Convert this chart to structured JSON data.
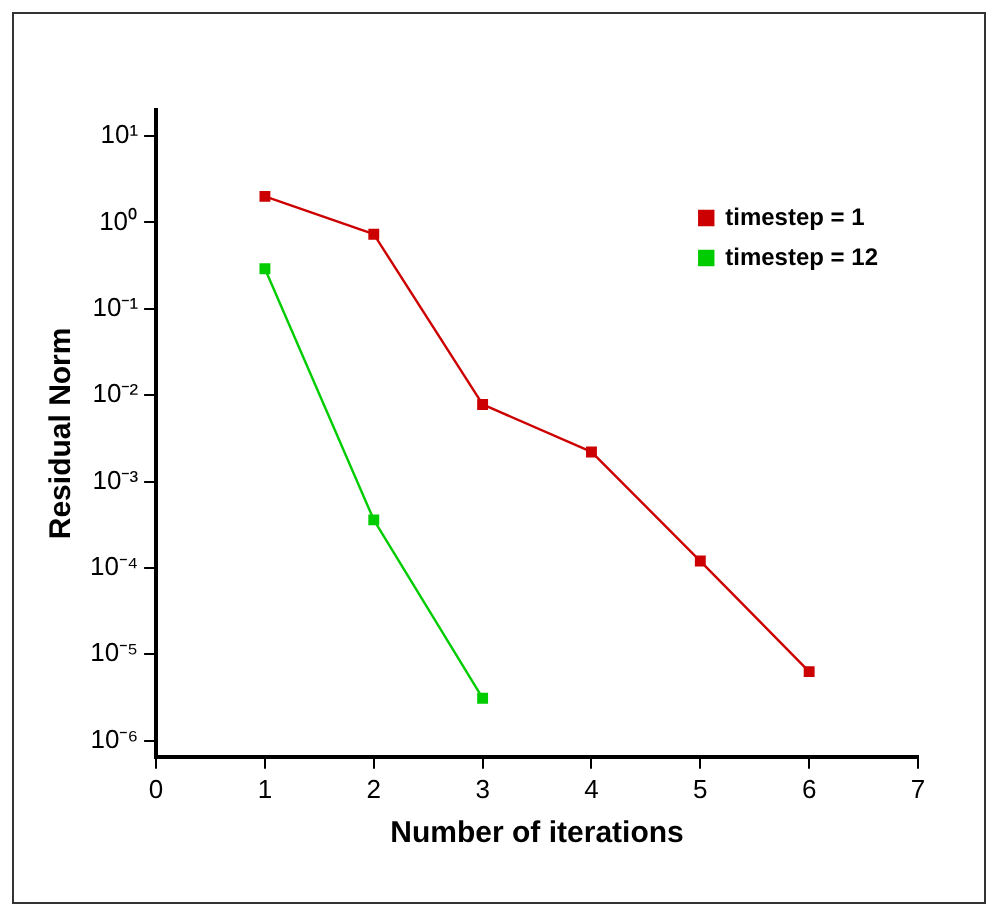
{
  "chart_data": {
    "type": "line",
    "xlabel": "Number of iterations",
    "ylabel": "Residual Norm",
    "log": "y",
    "grid": false,
    "legend": "top right",
    "marker": "square",
    "line_style": "solid",
    "xlim": [
      0,
      7
    ],
    "xticks": [
      0,
      1,
      2,
      3,
      4,
      5,
      6,
      7
    ],
    "ylim": [
      6.5e-07,
      20
    ],
    "yticks": [
      {
        "value": 1e-06,
        "label": "10⁻⁶"
      },
      {
        "value": 1e-05,
        "label": "10⁻⁵"
      },
      {
        "value": 0.0001,
        "label": "10⁻⁴"
      },
      {
        "value": 0.001,
        "label": "10⁻³"
      },
      {
        "value": 0.01,
        "label": "10⁻²"
      },
      {
        "value": 0.1,
        "label": "10⁻¹"
      },
      {
        "value": 1,
        "label": "10⁰"
      },
      {
        "value": 10,
        "label": "10¹"
      }
    ],
    "series": [
      {
        "name": "timestep = 1",
        "color": "#cc0000",
        "x": [
          1,
          2,
          3,
          4,
          5,
          6
        ],
        "values": [
          2.0,
          0.73,
          0.0078,
          0.0022,
          0.00012,
          6.3e-06
        ]
      },
      {
        "name": "timestep = 12",
        "color": "#00cc00",
        "x": [
          1,
          2,
          3
        ],
        "values": [
          0.29,
          0.00036,
          3.1e-06
        ]
      }
    ]
  }
}
